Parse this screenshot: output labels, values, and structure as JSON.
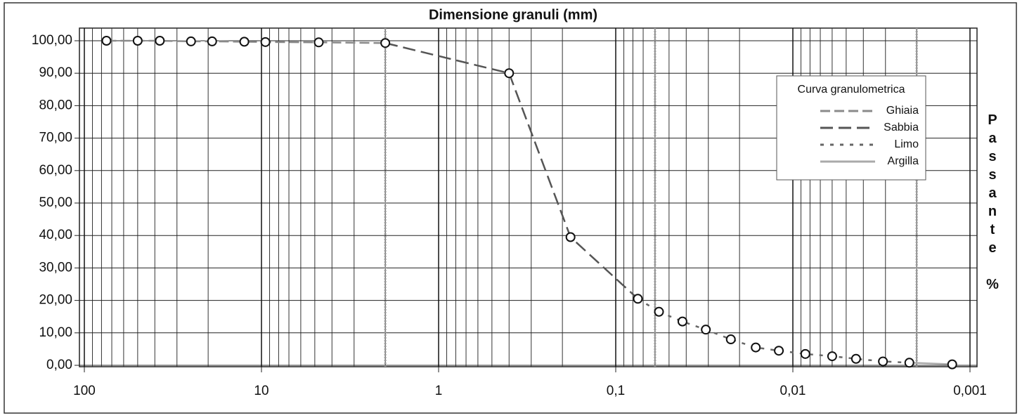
{
  "chart_data": {
    "type": "line",
    "title": "Dimensione granuli (mm)",
    "y_label": "Passante %",
    "legend_title": "Curva granulometrica",
    "legend": "upper right",
    "x_scale": "log",
    "grid": true,
    "xlim": [
      100,
      0.001
    ],
    "xticks": [
      100,
      10,
      1,
      {
        "value": 0.1,
        "label": "0,1"
      },
      {
        "value": 0.01,
        "label": "0,01"
      },
      {
        "value": 0.001,
        "label": "0,001"
      }
    ],
    "ylim": [
      0,
      100
    ],
    "yticks": [
      {
        "value": 0,
        "label": "0,00"
      },
      {
        "value": 10,
        "label": "10,00"
      },
      {
        "value": 20,
        "label": "20,00"
      },
      {
        "value": 30,
        "label": "30,00"
      },
      {
        "value": 40,
        "label": "40,00"
      },
      {
        "value": 50,
        "label": "50,00"
      },
      {
        "value": 60,
        "label": "60,00"
      },
      {
        "value": 70,
        "label": "70,00"
      },
      {
        "value": 80,
        "label": "80,00"
      },
      {
        "value": 90,
        "label": "90,00"
      },
      {
        "value": 100,
        "label": "100,00"
      }
    ],
    "boundaries": [
      2,
      0.06,
      0.002
    ],
    "boundary_color": "#9a9a9a",
    "series": [
      {
        "name": "Ghiaia",
        "color": "#8a8a8a",
        "dash": "14 6",
        "x": [
          75,
          50,
          37.5,
          25,
          19,
          12.5,
          9.5,
          4.75,
          2
        ],
        "values": [
          100,
          100,
          100,
          99.8,
          99.8,
          99.7,
          99.6,
          99.5,
          99.3
        ]
      },
      {
        "name": "Sabbia",
        "color": "#555555",
        "dash": "18 8",
        "x": [
          0.4,
          0.18,
          0.075
        ],
        "values": [
          90,
          39.5,
          20.5
        ]
      },
      {
        "name": "Limo",
        "color": "#666666",
        "dash": "5 9",
        "x": [
          0.057,
          0.042,
          0.031,
          0.0224,
          0.0162,
          0.012,
          0.0085,
          0.006,
          0.0044,
          0.0031,
          0.0022
        ],
        "values": [
          16.5,
          13.5,
          11,
          8,
          5.5,
          4.5,
          3.5,
          2.8,
          2,
          1.2,
          0.8
        ]
      },
      {
        "name": "Argilla",
        "color": "#aaaaaa",
        "dash": "",
        "x": [
          0.00126
        ],
        "values": [
          0.3
        ]
      }
    ]
  }
}
